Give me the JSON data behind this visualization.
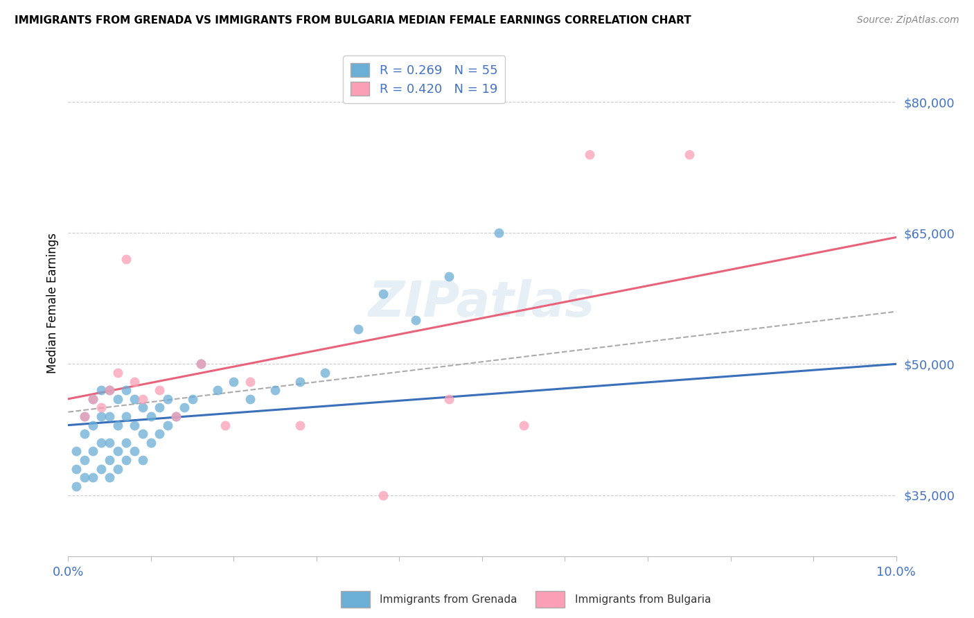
{
  "title": "IMMIGRANTS FROM GRENADA VS IMMIGRANTS FROM BULGARIA MEDIAN FEMALE EARNINGS CORRELATION CHART",
  "source": "Source: ZipAtlas.com",
  "ylabel": "Median Female Earnings",
  "xlim": [
    0.0,
    0.1
  ],
  "ylim": [
    28000,
    86000
  ],
  "yticks": [
    35000,
    50000,
    65000,
    80000
  ],
  "ytick_labels": [
    "$35,000",
    "$50,000",
    "$65,000",
    "$80,000"
  ],
  "xticks": [
    0.0,
    0.01,
    0.02,
    0.03,
    0.04,
    0.05,
    0.06,
    0.07,
    0.08,
    0.09,
    0.1
  ],
  "xtick_labels": [
    "0.0%",
    "",
    "",
    "",
    "",
    "",
    "",
    "",
    "",
    "",
    "10.0%"
  ],
  "grenada_R": 0.269,
  "grenada_N": 55,
  "bulgaria_R": 0.42,
  "bulgaria_N": 19,
  "blue_color": "#6baed6",
  "pink_color": "#fa9fb5",
  "blue_line_color": "#3a6fba",
  "pink_line_color": "#e8637a",
  "gray_dash_color": "#aaaaaa",
  "axis_color": "#4472c4",
  "background_color": "#ffffff",
  "grid_color": "#cccccc",
  "watermark": "ZIPatlas",
  "grenada_line_x0": 0.0,
  "grenada_line_y0": 43000,
  "grenada_line_x1": 0.1,
  "grenada_line_y1": 50000,
  "bulgaria_line_x0": 0.0,
  "bulgaria_line_y0": 46000,
  "bulgaria_line_x1": 0.1,
  "bulgaria_line_y1": 64500,
  "gray_line_x0": 0.0,
  "gray_line_y0": 44500,
  "gray_line_x1": 0.1,
  "gray_line_y1": 56000,
  "grenada_x": [
    0.001,
    0.001,
    0.001,
    0.002,
    0.002,
    0.002,
    0.002,
    0.003,
    0.003,
    0.003,
    0.003,
    0.004,
    0.004,
    0.004,
    0.004,
    0.005,
    0.005,
    0.005,
    0.005,
    0.005,
    0.006,
    0.006,
    0.006,
    0.006,
    0.007,
    0.007,
    0.007,
    0.007,
    0.008,
    0.008,
    0.008,
    0.009,
    0.009,
    0.009,
    0.01,
    0.01,
    0.011,
    0.011,
    0.012,
    0.012,
    0.013,
    0.014,
    0.015,
    0.016,
    0.018,
    0.02,
    0.022,
    0.025,
    0.028,
    0.031,
    0.035,
    0.038,
    0.042,
    0.046,
    0.052
  ],
  "grenada_y": [
    36000,
    38000,
    40000,
    37000,
    39000,
    42000,
    44000,
    37000,
    40000,
    43000,
    46000,
    38000,
    41000,
    44000,
    47000,
    37000,
    39000,
    41000,
    44000,
    47000,
    38000,
    40000,
    43000,
    46000,
    39000,
    41000,
    44000,
    47000,
    40000,
    43000,
    46000,
    39000,
    42000,
    45000,
    41000,
    44000,
    42000,
    45000,
    43000,
    46000,
    44000,
    45000,
    46000,
    50000,
    47000,
    48000,
    46000,
    47000,
    48000,
    49000,
    54000,
    58000,
    55000,
    60000,
    65000
  ],
  "bulgaria_x": [
    0.002,
    0.003,
    0.004,
    0.005,
    0.006,
    0.007,
    0.008,
    0.009,
    0.011,
    0.013,
    0.016,
    0.019,
    0.022,
    0.028,
    0.038,
    0.046,
    0.055,
    0.063,
    0.075
  ],
  "bulgaria_y": [
    44000,
    46000,
    45000,
    47000,
    49000,
    62000,
    48000,
    46000,
    47000,
    44000,
    50000,
    43000,
    48000,
    43000,
    35000,
    46000,
    43000,
    74000,
    74000
  ]
}
